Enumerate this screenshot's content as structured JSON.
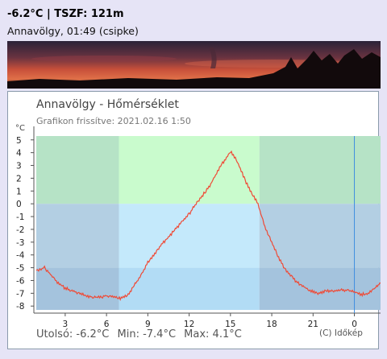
{
  "header": {
    "title": "-6.2°C | TSZF: 121m",
    "subtitle": "Annavölgy, 01:49 (csipke)"
  },
  "chart": {
    "title": "Annavölgy - Hőmérséklet",
    "updated": "Grafikon frissítve: 2021.02.16 1:50",
    "unit": "°C",
    "footer": {
      "last": "Utolsó: -6.2°C",
      "min": "Min: -7.4°C",
      "max": "Max: 4.1°C"
    },
    "copyright": "(C) Időkép"
  },
  "colors": {
    "line": "#ef4a36",
    "band_warm_dim": "#b6e3c6",
    "band_warm_bright": "#c9fbcd",
    "band_cold_dim": "#b3cfe3",
    "band_cold_bright": "#c4e9fb",
    "band_deep_dim": "#a4c3dd",
    "band_deep_bright": "#b2dcf5",
    "now_marker": "#3f8ee0"
  },
  "chart_data": {
    "type": "line",
    "y_ticks": [
      5,
      4,
      3,
      2,
      1,
      0,
      -1,
      -2,
      -3,
      -4,
      -5,
      -6,
      -7,
      -8
    ],
    "ylim": [
      -8.3,
      5.3
    ],
    "x_ticks": [
      "3",
      "6",
      "9",
      "12",
      "15",
      "18",
      "21",
      "0"
    ],
    "xlim": [
      0.9,
      25.9
    ],
    "now_hour": 24,
    "daylight_hours": [
      6.9,
      17.1
    ],
    "series": [
      {
        "x": [
          0.9,
          1.5,
          2,
          2.5,
          3,
          3.5,
          4,
          4.5,
          5,
          5.5,
          6,
          6.5,
          7,
          7.5,
          8,
          8.5,
          9,
          9.5,
          10,
          10.5,
          11,
          11.5,
          12,
          12.5,
          13,
          13.5,
          14,
          14.5,
          15,
          15.5,
          16,
          16.5,
          17,
          17.5,
          18,
          18.5,
          19,
          19.5,
          20,
          20.5,
          21,
          21.5,
          22,
          22.5,
          23,
          23.5,
          24,
          24.5,
          25,
          25.5,
          25.9
        ],
        "y": [
          -5.2,
          -5.0,
          -5.6,
          -6.2,
          -6.6,
          -6.8,
          -7.0,
          -7.2,
          -7.3,
          -7.3,
          -7.2,
          -7.3,
          -7.4,
          -7.2,
          -6.4,
          -5.6,
          -4.6,
          -3.9,
          -3.2,
          -2.6,
          -2.0,
          -1.4,
          -0.8,
          0.0,
          0.7,
          1.4,
          2.4,
          3.3,
          4.1,
          3.3,
          2.0,
          0.9,
          0.0,
          -1.8,
          -3.0,
          -4.2,
          -5.2,
          -5.8,
          -6.3,
          -6.6,
          -6.9,
          -7.0,
          -6.8,
          -6.8,
          -6.7,
          -6.8,
          -6.9,
          -7.1,
          -7.0,
          -6.6,
          -6.2
        ]
      }
    ]
  }
}
